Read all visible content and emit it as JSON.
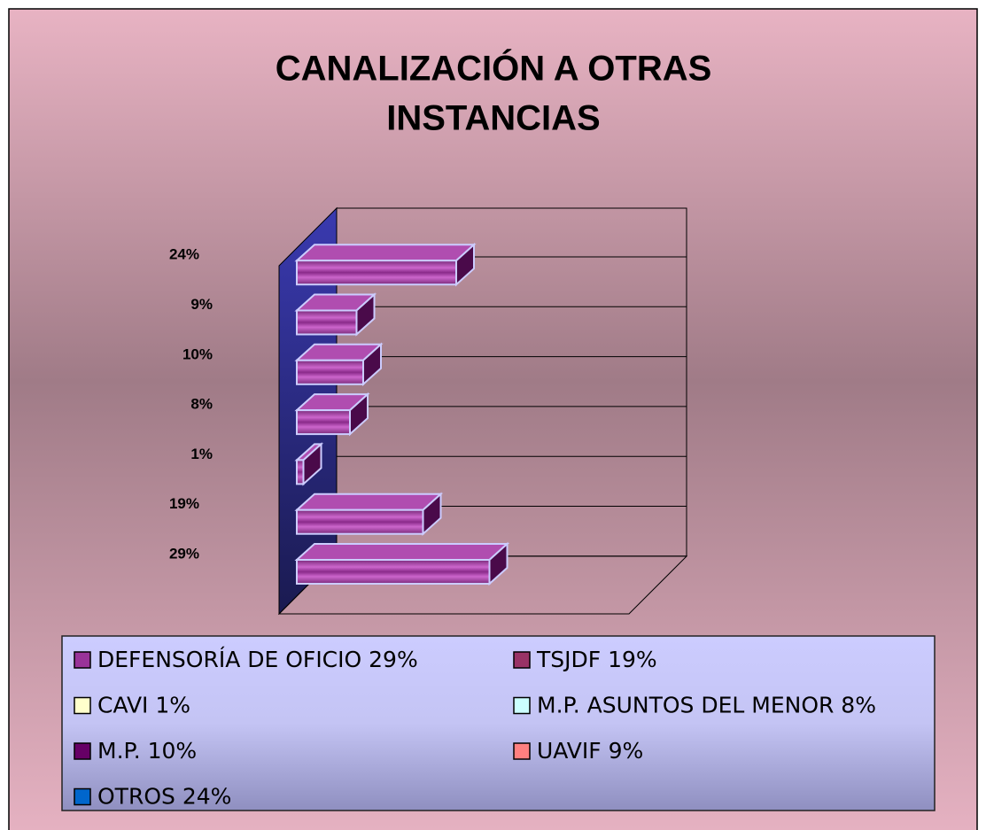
{
  "chart_data": {
    "type": "bar3d",
    "title": "CANALIZACIÓN A OTRAS INSTANCIAS",
    "categories": [
      "DEFENSORÍA DE OFICIO 29%",
      "TSJDF 19%",
      "CAVI 1%",
      "M.P. ASUNTOS DEL MENOR 8%",
      "M.P. 10%",
      "UAVIF 9%",
      "OTROS 24%"
    ],
    "values": [
      29,
      19,
      1,
      8,
      10,
      9,
      24
    ],
    "value_labels": [
      "29%",
      "19%",
      "1%",
      "8%",
      "10%",
      "9%",
      "24%"
    ],
    "color": "#993399",
    "legend_colors": [
      "#993399",
      "#993366",
      "#ffffcc",
      "#ccffff",
      "#660066",
      "#ff8080",
      "#0066cc"
    ],
    "xlim": [
      0,
      50
    ]
  }
}
